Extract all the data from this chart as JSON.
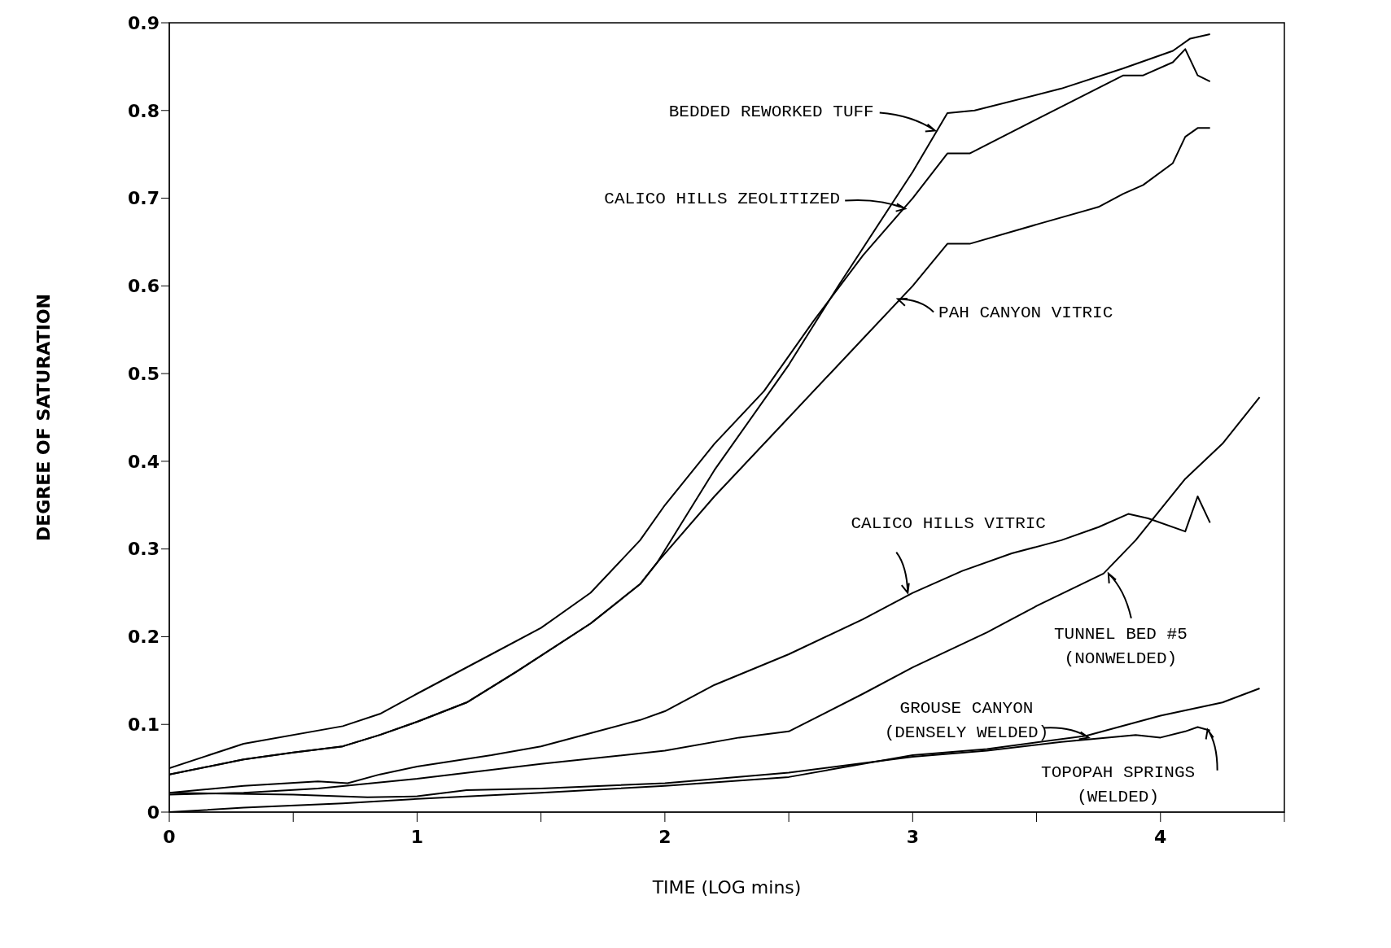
{
  "chart_data": {
    "type": "line",
    "xlabel": "TIME (LOG mins)",
    "ylabel": "DEGREE OF SATURATION",
    "xlim": [
      0,
      4.5
    ],
    "ylim": [
      0,
      0.9
    ],
    "xticks": [
      0,
      {
        "value": 0.5,
        "label": null
      },
      1,
      {
        "value": 1.5,
        "label": null
      },
      2,
      {
        "value": 2.5,
        "label": null
      },
      3,
      {
        "value": 3.5,
        "label": null
      },
      4,
      {
        "value": 4.5,
        "label": null
      }
    ],
    "yticks": [
      0,
      0.1,
      0.2,
      0.3,
      0.4,
      0.5,
      0.6,
      0.7,
      0.8,
      0.9
    ],
    "grid": false,
    "marker": "none",
    "line_style": "solid",
    "series": [
      {
        "color": "#000000",
        "x": [
          0,
          0.3,
          0.5,
          0.7,
          0.85,
          1.0,
          1.2,
          1.4,
          1.7,
          1.9,
          1.97,
          2.2,
          2.5,
          2.7,
          3.0,
          3.14,
          3.25,
          3.6,
          3.85,
          4.05,
          4.12,
          4.2
        ],
        "values": [
          0.043,
          0.06,
          0.068,
          0.075,
          0.088,
          0.103,
          0.125,
          0.16,
          0.215,
          0.26,
          0.285,
          0.39,
          0.51,
          0.6,
          0.73,
          0.797,
          0.8,
          0.825,
          0.848,
          0.868,
          0.882,
          0.887
        ]
      },
      {
        "color": "#000000",
        "x": [
          0,
          0.3,
          0.7,
          0.85,
          1.0,
          1.3,
          1.5,
          1.7,
          1.9,
          2.0,
          2.2,
          2.4,
          2.6,
          2.8,
          3.0,
          3.14,
          3.23,
          3.5,
          3.85,
          3.93,
          4.05,
          4.1,
          4.15,
          4.2
        ],
        "values": [
          0.05,
          0.078,
          0.098,
          0.112,
          0.135,
          0.18,
          0.21,
          0.25,
          0.31,
          0.35,
          0.42,
          0.48,
          0.56,
          0.635,
          0.7,
          0.751,
          0.751,
          0.79,
          0.84,
          0.84,
          0.855,
          0.87,
          0.84,
          0.833
        ]
      },
      {
        "color": "#000000",
        "x": [
          0,
          0.3,
          0.5,
          0.7,
          0.85,
          1.0,
          1.2,
          1.4,
          1.7,
          1.9,
          1.97,
          2.2,
          2.5,
          2.8,
          3.0,
          3.14,
          3.23,
          3.5,
          3.75,
          3.85,
          3.93,
          4.05,
          4.1,
          4.15,
          4.2
        ],
        "values": [
          0.043,
          0.06,
          0.068,
          0.075,
          0.088,
          0.103,
          0.125,
          0.16,
          0.215,
          0.26,
          0.285,
          0.36,
          0.45,
          0.54,
          0.6,
          0.648,
          0.648,
          0.67,
          0.69,
          0.705,
          0.715,
          0.74,
          0.77,
          0.78,
          0.78
        ]
      },
      {
        "color": "#000000",
        "x": [
          0,
          0.3,
          0.6,
          0.72,
          0.85,
          1.0,
          1.3,
          1.5,
          1.7,
          1.9,
          2.0,
          2.2,
          2.5,
          2.8,
          3.0,
          3.2,
          3.4,
          3.6,
          3.75,
          3.87,
          3.95,
          4.1,
          4.15,
          4.2
        ],
        "values": [
          0.022,
          0.03,
          0.035,
          0.033,
          0.043,
          0.052,
          0.065,
          0.075,
          0.09,
          0.105,
          0.115,
          0.145,
          0.18,
          0.22,
          0.25,
          0.275,
          0.295,
          0.31,
          0.325,
          0.34,
          0.335,
          0.32,
          0.36,
          0.33
        ]
      },
      {
        "color": "#000000",
        "x": [
          0,
          0.3,
          0.6,
          1.0,
          1.5,
          2.0,
          2.3,
          2.5,
          2.8,
          3.0,
          3.3,
          3.5,
          3.77,
          3.9,
          4.0,
          4.1,
          4.25,
          4.4
        ],
        "values": [
          0.02,
          0.022,
          0.027,
          0.038,
          0.055,
          0.07,
          0.085,
          0.092,
          0.135,
          0.165,
          0.205,
          0.235,
          0.272,
          0.31,
          0.345,
          0.38,
          0.42,
          0.473
        ]
      },
      {
        "color": "#000000",
        "x": [
          0,
          0.3,
          0.7,
          1.0,
          1.5,
          2.0,
          2.5,
          3.0,
          3.3,
          3.7,
          4.0,
          4.25,
          4.4
        ],
        "values": [
          0,
          0.005,
          0.01,
          0.015,
          0.022,
          0.03,
          0.04,
          0.065,
          0.072,
          0.087,
          0.11,
          0.125,
          0.141
        ]
      },
      {
        "color": "#000000",
        "x": [
          0,
          0.5,
          0.8,
          1.0,
          1.2,
          1.5,
          2.0,
          2.5,
          3.0,
          3.3,
          3.6,
          3.9,
          4.0,
          4.1,
          4.15,
          4.2
        ],
        "values": [
          0.022,
          0.02,
          0.017,
          0.018,
          0.025,
          0.027,
          0.033,
          0.045,
          0.063,
          0.07,
          0.08,
          0.088,
          0.085,
          0.092,
          0.097,
          0.093
        ]
      }
    ],
    "annotations": [
      {
        "text": "BEDDED REWORKED TUFF",
        "x": 3.09,
        "y": 0.777
      },
      {
        "text": "CALICO HILLS ZEOLITIZED",
        "x": 2.97,
        "y": 0.688
      },
      {
        "text": "PAH CANYON VITRIC",
        "x": 2.94,
        "y": 0.585
      },
      {
        "text": "CALICO HILLS VITRIC",
        "x": 2.98,
        "y": 0.25
      },
      {
        "text": "TUNNEL BED #5 (NONWELDED)",
        "x": 3.79,
        "y": 0.272
      },
      {
        "text": "GROUSE CANYON (DENSELY WELDED)",
        "x": 3.71,
        "y": 0.085
      },
      {
        "text": "TOPOPAH SPRINGS (WELDED)",
        "x": 4.19,
        "y": 0.094
      }
    ]
  }
}
